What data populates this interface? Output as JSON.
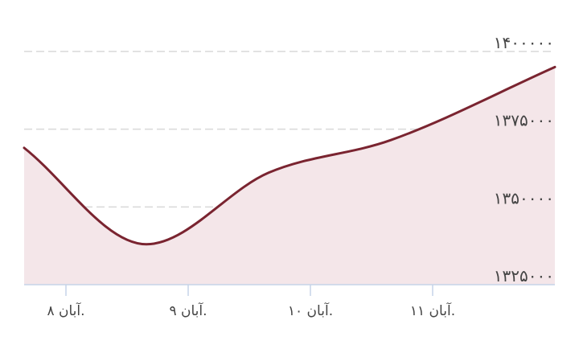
{
  "chart_data": {
    "type": "area",
    "x": [
      "آبان ۸.",
      "آبان ۹.",
      "آبان ۱۰.",
      "آبان ۱۱.",
      ""
    ],
    "x_tick_labels": [
      "آبان ۸.",
      "آبان ۹.",
      "آبان ۱۰.",
      "آبان ۱۱."
    ],
    "series": [
      {
        "values": [
          1369000,
          1338000,
          1361000,
          1371500,
          1395000
        ]
      }
    ],
    "ylim": [
      1325000,
      1400000
    ],
    "y_ticks": [
      1325000,
      1350000,
      1375000,
      1400000
    ],
    "y_tick_labels": [
      "۱۳۲۵۰۰۰",
      "۱۳۵۰۰۰۰",
      "۱۳۷۵۰۰۰",
      "۱۴۰۰۰۰۰"
    ],
    "y_axis_side": "right",
    "grid": true,
    "line_color": "#7a2430",
    "fill_color": "#f4e6e9"
  }
}
